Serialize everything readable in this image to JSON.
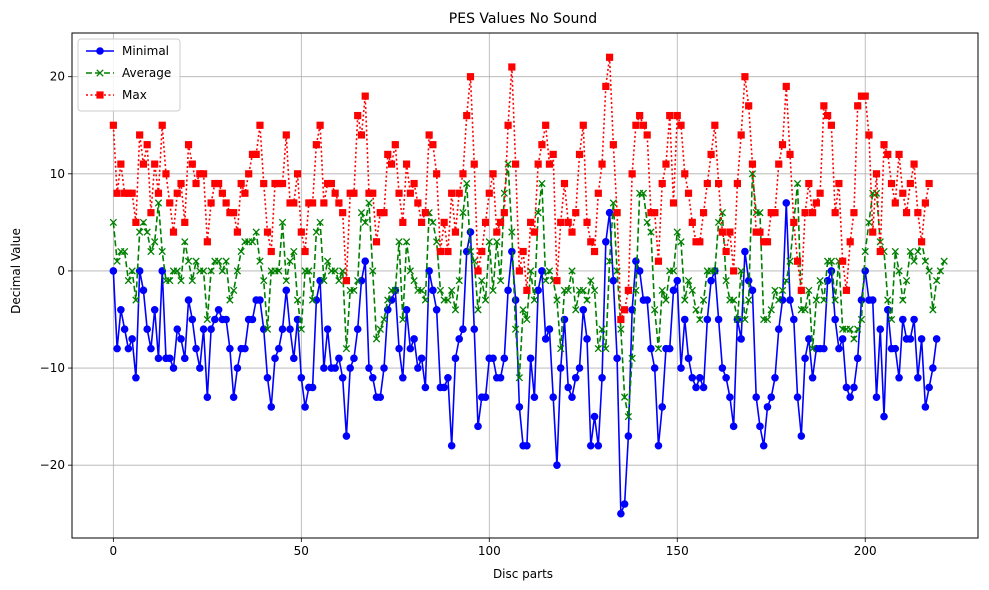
{
  "chart_data": {
    "type": "line",
    "title": "PES Values No Sound",
    "xlabel": "Disc parts",
    "ylabel": "Decimal Value",
    "xlim": [
      -11,
      230
    ],
    "ylim": [
      -27.5,
      24.5
    ],
    "xticks": [
      0,
      50,
      100,
      150,
      200
    ],
    "yticks": [
      -20,
      -10,
      0,
      10,
      20
    ],
    "grid": true,
    "legend_position": "top-left",
    "series": [
      {
        "name": "Minimal",
        "color": "#0000ff",
        "linestyle": "solid",
        "marker": "circle",
        "values": [
          0,
          -8,
          -4,
          -6,
          -8,
          -7,
          -11,
          0,
          -2,
          -6,
          -8,
          -4,
          -9,
          0,
          -9,
          -9,
          -10,
          -6,
          -7,
          -9,
          -3,
          -5,
          -8,
          -10,
          -6,
          -13,
          -6,
          -5,
          -4,
          -5,
          -5,
          -8,
          -13,
          -10,
          -8,
          -8,
          -5,
          -5,
          -3,
          -3,
          -6,
          -11,
          -14,
          -9,
          -8,
          -6,
          -2,
          -6,
          -9,
          -5,
          -11,
          -14,
          -12,
          -12,
          -3,
          -1,
          -10,
          -6,
          -10,
          -10,
          -9,
          -11,
          -17,
          -10,
          -9,
          -6,
          -1,
          1,
          -10,
          -11,
          -13,
          -13,
          -10,
          -4,
          -3,
          -2,
          -8,
          -11,
          -4,
          -8,
          -7,
          -10,
          -9,
          -12,
          0,
          -2,
          -4,
          -12,
          -12,
          -11,
          -18,
          -9,
          -7,
          -6,
          2,
          4,
          -6,
          -16,
          -13,
          -13,
          -9,
          -9,
          -11,
          -11,
          -9,
          -2,
          2,
          -3,
          -14,
          -18,
          -18,
          -9,
          -13,
          -2,
          0,
          -7,
          -6,
          -13,
          -20,
          -10,
          -5,
          -12,
          -13,
          -11,
          -10,
          -4,
          -7,
          -18,
          -15,
          -18,
          -11,
          3,
          6,
          -1,
          -9,
          -25,
          -24,
          -17,
          -4,
          1,
          0,
          -3,
          -3,
          -8,
          -10,
          -18,
          -14,
          -8,
          -8,
          -2,
          -1,
          -10,
          -5,
          -9,
          -11,
          -12,
          -11,
          -12,
          -5,
          -1,
          0,
          -5,
          -10,
          -11,
          -13,
          -16,
          -5,
          -7,
          2,
          -1,
          -2,
          -13,
          -16,
          -18,
          -14,
          -13,
          -11,
          -6,
          -3,
          7,
          -3,
          -5,
          -13,
          -17,
          -9,
          -7,
          -11,
          -8,
          -8,
          -8,
          -1,
          0,
          -5,
          -8,
          -7,
          -12,
          -13,
          -12,
          -9,
          -3,
          0,
          -3,
          -3,
          -13,
          -6,
          -15,
          -4,
          -8,
          -8,
          -11,
          -5,
          -7,
          -7,
          -5,
          -11,
          -7,
          -14,
          -12,
          -10,
          -7
        ]
      },
      {
        "name": "Average",
        "color": "#008000",
        "linestyle": "dashed",
        "marker": "x",
        "values": [
          5,
          1,
          2,
          2,
          -1,
          0,
          -3,
          4,
          5,
          4,
          2,
          3,
          7,
          2,
          -1,
          -1,
          0,
          0,
          -1,
          3,
          1,
          -1,
          1,
          0,
          0,
          -5,
          0,
          1,
          1,
          0,
          1,
          -3,
          -2,
          0,
          2,
          3,
          3,
          3,
          4,
          1,
          -1,
          -6,
          0,
          0,
          0,
          5,
          -1,
          1,
          2,
          -3,
          -6,
          0,
          0,
          -3,
          4,
          5,
          -1,
          1,
          0,
          0,
          -1,
          0,
          -8,
          -2,
          -2,
          -1,
          6,
          5,
          7,
          0,
          -7,
          -6,
          -5,
          -3,
          -2,
          -2,
          3,
          -5,
          3,
          0,
          -1,
          -2,
          -2,
          -3,
          6,
          5,
          3,
          -2,
          -3,
          -3,
          -2,
          -4,
          -1,
          6,
          9,
          2,
          1,
          -4,
          -1,
          -3,
          3,
          -2,
          3,
          -1,
          8,
          11,
          4,
          -6,
          -11,
          -4,
          -5,
          0,
          -3,
          6,
          9,
          -1,
          0,
          -1,
          -3,
          -8,
          -2,
          -2,
          0,
          -4,
          -2,
          -2,
          -3,
          -1,
          -2,
          -8,
          -6,
          -8,
          1,
          7,
          0,
          -6,
          -13,
          -15,
          -9,
          -2,
          8,
          8,
          5,
          4,
          -4,
          -8,
          -2,
          -3,
          0,
          0,
          4,
          3,
          -3,
          -1,
          -2,
          -4,
          -5,
          -3,
          0,
          0,
          0,
          5,
          6,
          -1,
          -3,
          -3,
          -5,
          0,
          -5,
          -3,
          10,
          6,
          6,
          -5,
          -5,
          -4,
          -2,
          -3,
          -2,
          -1,
          1,
          5,
          9,
          -4,
          -4,
          -2,
          -8,
          -3,
          -1,
          -3,
          1,
          1,
          -3,
          1,
          -6,
          -6,
          -6,
          -7,
          -6,
          -5,
          2,
          5,
          8,
          8,
          3,
          2,
          -3,
          -5,
          2,
          0,
          -3,
          -1,
          2,
          1,
          2,
          3,
          1,
          0,
          -4,
          -1,
          0,
          1
        ]
      },
      {
        "name": "Max",
        "color": "#ff0000",
        "linestyle": "dotted",
        "marker": "square",
        "values": [
          15,
          8,
          11,
          8,
          8,
          8,
          5,
          14,
          11,
          13,
          6,
          11,
          8,
          15,
          10,
          7,
          4,
          8,
          9,
          5,
          13,
          11,
          9,
          10,
          10,
          3,
          7,
          9,
          9,
          8,
          7,
          6,
          6,
          4,
          9,
          8,
          10,
          12,
          12,
          15,
          9,
          4,
          2,
          9,
          9,
          9,
          14,
          7,
          7,
          10,
          4,
          2,
          7,
          7,
          13,
          15,
          7,
          9,
          9,
          8,
          7,
          6,
          -1,
          8,
          8,
          16,
          14,
          18,
          8,
          8,
          3,
          6,
          6,
          12,
          11,
          13,
          8,
          5,
          11,
          8,
          9,
          7,
          5,
          6,
          14,
          13,
          10,
          2,
          5,
          2,
          8,
          4,
          8,
          10,
          16,
          20,
          11,
          0,
          2,
          5,
          8,
          10,
          4,
          5,
          6,
          15,
          21,
          11,
          0,
          2,
          -2,
          5,
          4,
          11,
          13,
          15,
          11,
          12,
          -1,
          5,
          9,
          5,
          4,
          6,
          12,
          15,
          5,
          3,
          2,
          8,
          11,
          19,
          22,
          13,
          6,
          -5,
          -4,
          -2,
          10,
          15,
          16,
          15,
          14,
          6,
          6,
          1,
          9,
          11,
          16,
          7,
          16,
          15,
          10,
          8,
          5,
          3,
          3,
          6,
          9,
          12,
          15,
          9,
          4,
          2,
          4,
          0,
          9,
          14,
          20,
          17,
          11,
          4,
          4,
          3,
          3,
          6,
          6,
          11,
          13,
          19,
          12,
          5,
          1,
          -2,
          6,
          9,
          6,
          7,
          8,
          17,
          16,
          15,
          6,
          9,
          1,
          -2,
          3,
          6,
          17,
          18,
          18,
          14,
          4,
          10,
          2,
          13,
          12,
          9,
          7,
          12,
          8,
          6,
          9,
          11,
          6,
          3,
          7,
          9
        ]
      }
    ]
  }
}
